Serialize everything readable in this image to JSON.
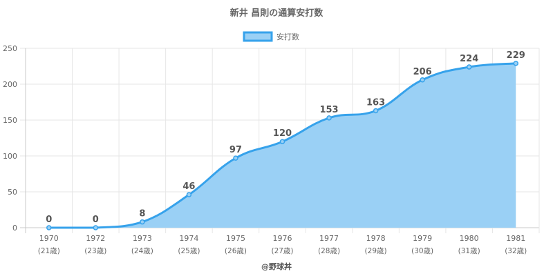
{
  "chart_data": {
    "type": "area",
    "title": "新井 昌則の通算安打数",
    "legend": {
      "label": "安打数",
      "position": "top"
    },
    "categories": [
      "1970",
      "1972",
      "1973",
      "1974",
      "1975",
      "1976",
      "1977",
      "1978",
      "1979",
      "1980",
      "1981"
    ],
    "sublabels": [
      "(21歳)",
      "(23歳)",
      "(24歳)",
      "(25歳)",
      "(26歳)",
      "(27歳)",
      "(28歳)",
      "(29歳)",
      "(30歳)",
      "(31歳)",
      "(32歳)"
    ],
    "series": [
      {
        "name": "安打数",
        "values": [
          0,
          0,
          8,
          46,
          97,
          120,
          153,
          163,
          206,
          224,
          229
        ]
      }
    ],
    "ylim": [
      0,
      250
    ],
    "yticks": [
      0,
      50,
      100,
      150,
      200,
      250
    ],
    "grid": true,
    "footer": "@野球丼",
    "colors": {
      "line": "#36a2eb",
      "fill": "#9ad0f5",
      "grid": "#e6e6e6",
      "text": "#666666"
    }
  }
}
